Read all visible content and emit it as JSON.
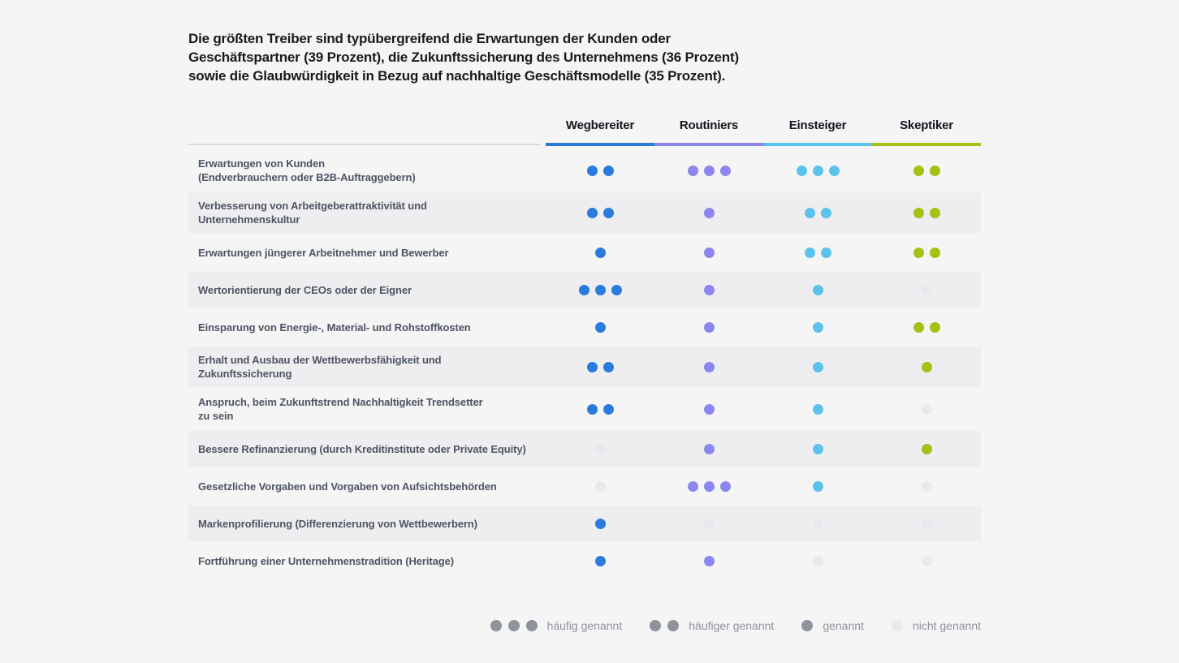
{
  "title_lines": [
    "Die größten Treiber sind typübergreifend die Erwartungen der Kunden oder",
    "Geschäftspartner (39 Prozent), die Zukunftssicherung des Unternehmens (36 Prozent)",
    "sowie die Glaubwürdigkeit in Bezug auf nachhaltige Geschäftsmodelle (35 Prozent)."
  ],
  "chart_data": {
    "type": "table",
    "title": "Die größten Treiber sind typübergreifend die Erwartungen der Kunden oder Geschäftspartner (39 Prozent), die Zukunftssicherung des Unternehmens (36 Prozent) sowie die Glaubwürdigkeit in Bezug auf nachhaltige Geschäftsmodelle (35 Prozent).",
    "columns": [
      {
        "key": "wegbereiter",
        "label": "Wegbereiter",
        "color": "#2b7bdd"
      },
      {
        "key": "routiniers",
        "label": "Routiniers",
        "color": "#8c87ee"
      },
      {
        "key": "einsteiger",
        "label": "Einsteiger",
        "color": "#5bc3ea"
      },
      {
        "key": "skeptiker",
        "label": "Skeptiker",
        "color": "#a5c115"
      }
    ],
    "value_scale": {
      "3": "häufig genannt",
      "2": "häufiger genannt",
      "1": "genannt",
      "0": "nicht genannt"
    },
    "rows": [
      {
        "label": "Erwartungen von Kunden (Endverbrauchern oder B2B-Auftraggebern)",
        "label_lines": [
          "Erwartungen von Kunden",
          "(Endverbrauchern oder B2B-Auftraggebern)"
        ],
        "values": [
          2,
          3,
          3,
          2
        ]
      },
      {
        "label": "Verbesserung von Arbeitgeberattraktivität und Unternehmenskultur",
        "label_lines": [
          "Verbesserung von Arbeitgeberattraktivität und",
          "Unternehmenskultur"
        ],
        "values": [
          2,
          1,
          2,
          2
        ]
      },
      {
        "label": "Erwartungen jüngerer Arbeitnehmer und Bewerber",
        "label_lines": [
          "Erwartungen jüngerer Arbeitnehmer und Bewerber"
        ],
        "values": [
          1,
          1,
          2,
          2
        ]
      },
      {
        "label": "Wertorientierung der CEOs oder der Eigner",
        "label_lines": [
          "Wertorientierung der CEOs oder der Eigner"
        ],
        "values": [
          3,
          1,
          1,
          0
        ]
      },
      {
        "label": "Einsparung von Energie-, Material- und Rohstoffkosten",
        "label_lines": [
          "Einsparung von Energie-, Material- und Rohstoffkosten"
        ],
        "values": [
          1,
          1,
          1,
          2
        ]
      },
      {
        "label": "Erhalt und Ausbau der Wettbewerbsfähigkeit und Zukunftssicherung",
        "label_lines": [
          "Erhalt und Ausbau der Wettbewerbsfähigkeit und",
          "Zukunftssicherung"
        ],
        "values": [
          2,
          1,
          1,
          1
        ]
      },
      {
        "label": "Anspruch, beim Zukunftstrend Nachhaltigkeit Trendsetter zu sein",
        "label_lines": [
          "Anspruch, beim Zukunftstrend Nachhaltigkeit Trendsetter",
          "zu sein"
        ],
        "values": [
          2,
          1,
          1,
          0
        ]
      },
      {
        "label": "Bessere Refinanzierung (durch Kreditinstitute oder Private Equity)",
        "label_lines": [
          "Bessere Refinanzierung (durch Kreditinstitute oder Private Equity)"
        ],
        "values": [
          0,
          1,
          1,
          1
        ]
      },
      {
        "label": "Gesetzliche Vorgaben und Vorgaben von Aufsichtsbehörden",
        "label_lines": [
          "Gesetzliche Vorgaben und Vorgaben von Aufsichtsbehörden"
        ],
        "values": [
          0,
          3,
          1,
          0
        ]
      },
      {
        "label": "Markenprofilierung (Differenzierung von Wettbewerbern)",
        "label_lines": [
          "Markenprofilierung (Differenzierung von Wettbewerbern)"
        ],
        "values": [
          1,
          0,
          0,
          0
        ]
      },
      {
        "label": "Fortführung einer Unternehmenstradition (Heritage)",
        "label_lines": [
          "Fortführung einer Unternehmenstradition (Heritage)"
        ],
        "values": [
          1,
          1,
          0,
          0
        ]
      }
    ],
    "legend": [
      {
        "dots": 3,
        "label": "häufig genannt",
        "muted": false
      },
      {
        "dots": 2,
        "label": "häufiger genannt",
        "muted": false
      },
      {
        "dots": 1,
        "label": "genannt",
        "muted": false
      },
      {
        "dots": 1,
        "label": "nicht genannt",
        "muted": true
      }
    ]
  },
  "colors": {
    "background": "#f5f5f6",
    "row_alt": "#eeeef0",
    "none_dot": "#e8e9ec",
    "legend_dot": "#8e939c",
    "header_rule_gray": "#d8d8da",
    "title_text": "#1a1a1a",
    "row_label_text": "#4d5562",
    "legend_text": "#8e939c"
  }
}
